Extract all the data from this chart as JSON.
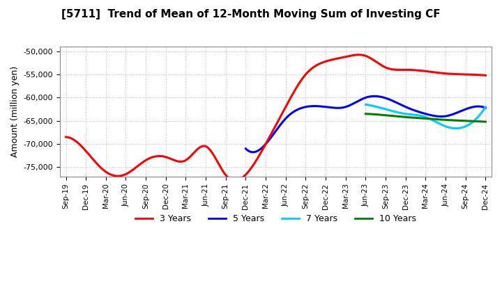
{
  "title": "[5711]  Trend of Mean of 12-Month Moving Sum of Investing CF",
  "ylabel": "Amount (million yen)",
  "background_color": "#ffffff",
  "plot_bg_color": "#ffffff",
  "grid_color": "#aaaaaa",
  "ylim": [
    -77000,
    -49000
  ],
  "yticks": [
    -75000,
    -70000,
    -65000,
    -60000,
    -55000,
    -50000
  ],
  "x_labels": [
    "Sep-19",
    "Dec-19",
    "Mar-20",
    "Jun-20",
    "Sep-20",
    "Dec-20",
    "Mar-21",
    "Jun-21",
    "Sep-21",
    "Dec-21",
    "Mar-22",
    "Jun-22",
    "Sep-22",
    "Dec-22",
    "Mar-23",
    "Jun-23",
    "Sep-23",
    "Dec-23",
    "Mar-24",
    "Jun-24",
    "Sep-24",
    "Dec-24"
  ],
  "series": {
    "3 Years": {
      "color": "#ff0000",
      "data_x": [
        0,
        1,
        2,
        3,
        4,
        5,
        6,
        7,
        8,
        9,
        10,
        11,
        12,
        13,
        14,
        15,
        16,
        17,
        18,
        19,
        20,
        21
      ],
      "data_y": [
        -68500,
        -71500,
        -76200,
        -76500,
        -73000,
        -72800,
        -73000,
        -70000,
        -76500,
        -76600,
        -70000,
        -62000,
        -55000,
        -52000,
        -51000,
        -51200,
        -53500,
        -54000,
        -54200,
        -54500,
        -55000,
        -55200
      ]
    },
    "5 Years": {
      "color": "#0000ff",
      "data_x": [
        9,
        10,
        11,
        12,
        13,
        14,
        15,
        16,
        17,
        18,
        19,
        20,
        21
      ],
      "data_y": [
        -71200,
        -69800,
        -64000,
        -62000,
        -62000,
        -62000,
        -60000,
        -60100,
        -62000,
        -63800,
        -64000,
        -62500,
        -62200
      ]
    },
    "7 Years": {
      "color": "#00ccff",
      "data_x": [
        15,
        16,
        17,
        18,
        19,
        20,
        21
      ],
      "data_y": [
        -61500,
        -62500,
        -63500,
        -64200,
        -66200,
        -66800,
        -62000
      ]
    },
    "10 Years": {
      "color": "#008000",
      "data_x": [
        15,
        16,
        17,
        18,
        19,
        20,
        21
      ],
      "data_y": [
        -63500,
        -63800,
        -64200,
        -64500,
        -64800,
        -65000,
        -65200
      ]
    }
  }
}
